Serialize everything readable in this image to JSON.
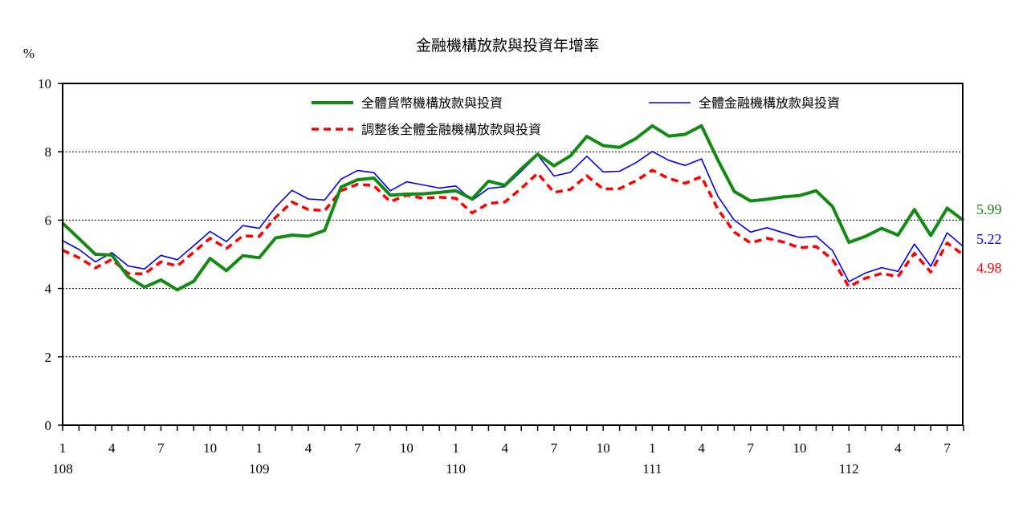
{
  "chart_data": {
    "type": "line",
    "title": "金融機構放款與投資年增率",
    "ylabel": "%",
    "xlabel": "",
    "ylim": [
      0,
      10
    ],
    "y_ticks": [
      "0",
      "2",
      "4",
      "6",
      "8",
      "10"
    ],
    "grid": true,
    "legend_position": "top",
    "x_months": [
      1,
      2,
      3,
      4,
      5,
      6,
      7,
      8,
      9,
      10,
      11,
      12,
      1,
      2,
      3,
      4,
      5,
      6,
      7,
      8,
      9,
      10,
      11,
      12,
      1,
      2,
      3,
      4,
      5,
      6,
      7,
      8,
      9,
      10,
      11,
      12,
      1,
      2,
      3,
      4,
      5,
      6,
      7,
      8,
      9,
      10,
      11,
      12,
      1,
      2,
      3,
      4,
      5,
      6,
      7,
      8
    ],
    "x_tick_labels": [
      "1",
      "4",
      "7",
      "10",
      "1",
      "4",
      "7",
      "10",
      "1",
      "4",
      "7",
      "10",
      "1",
      "4",
      "7",
      "10",
      "1",
      "4",
      "7"
    ],
    "x_tick_index": [
      0,
      3,
      6,
      9,
      12,
      15,
      18,
      21,
      24,
      27,
      30,
      33,
      36,
      39,
      42,
      45,
      48,
      51,
      54
    ],
    "year_labels": [
      "108",
      "109",
      "110",
      "111",
      "112"
    ],
    "year_index": [
      0,
      12,
      24,
      36,
      48
    ],
    "series": [
      {
        "name": "全體貨幣機構放款與投資",
        "color": "#138a13",
        "end_label": "5.99",
        "values": [
          5.91,
          5.46,
          5.0,
          4.98,
          4.34,
          4.04,
          4.25,
          3.96,
          4.21,
          4.88,
          4.52,
          4.96,
          4.9,
          5.48,
          5.56,
          5.53,
          5.7,
          6.97,
          7.18,
          7.23,
          6.73,
          6.76,
          6.77,
          6.81,
          6.86,
          6.62,
          7.14,
          7.02,
          7.5,
          7.93,
          7.59,
          7.88,
          8.45,
          8.18,
          8.13,
          8.39,
          8.76,
          8.46,
          8.51,
          8.76,
          7.76,
          6.84,
          6.56,
          6.61,
          6.68,
          6.72,
          6.86,
          6.4,
          5.35,
          5.52,
          5.76,
          5.56,
          6.31,
          5.55,
          6.35,
          5.99
        ]
      },
      {
        "name": "全體金融機構放款與投資",
        "color": "#0000ff",
        "end_label": "5.22",
        "values": [
          5.4,
          5.14,
          4.78,
          5.05,
          4.66,
          4.57,
          4.97,
          4.84,
          5.25,
          5.67,
          5.37,
          5.84,
          5.76,
          6.38,
          6.87,
          6.62,
          6.59,
          7.2,
          7.45,
          7.39,
          6.86,
          7.12,
          7.03,
          6.94,
          7.0,
          6.58,
          6.93,
          6.98,
          7.43,
          7.91,
          7.29,
          7.4,
          7.87,
          7.41,
          7.43,
          7.68,
          8.01,
          7.75,
          7.6,
          7.79,
          6.7,
          6.0,
          5.65,
          5.78,
          5.63,
          5.49,
          5.53,
          5.11,
          4.2,
          4.45,
          4.61,
          4.5,
          5.3,
          4.65,
          5.63,
          5.22
        ]
      },
      {
        "name": "調整後全體金融機構放款與投資",
        "color": "#ff0000",
        "end_label": "4.98",
        "values": [
          5.12,
          4.9,
          4.6,
          4.85,
          4.44,
          4.43,
          4.78,
          4.66,
          5.06,
          5.47,
          5.17,
          5.54,
          5.52,
          6.08,
          6.53,
          6.31,
          6.28,
          6.86,
          7.05,
          7.01,
          6.54,
          6.73,
          6.64,
          6.67,
          6.64,
          6.21,
          6.49,
          6.53,
          6.93,
          7.37,
          6.81,
          6.9,
          7.3,
          6.91,
          6.92,
          7.15,
          7.46,
          7.22,
          7.08,
          7.27,
          6.32,
          5.65,
          5.33,
          5.47,
          5.36,
          5.19,
          5.23,
          4.85,
          4.05,
          4.3,
          4.44,
          4.35,
          5.03,
          4.48,
          5.33,
          4.98
        ]
      }
    ]
  }
}
